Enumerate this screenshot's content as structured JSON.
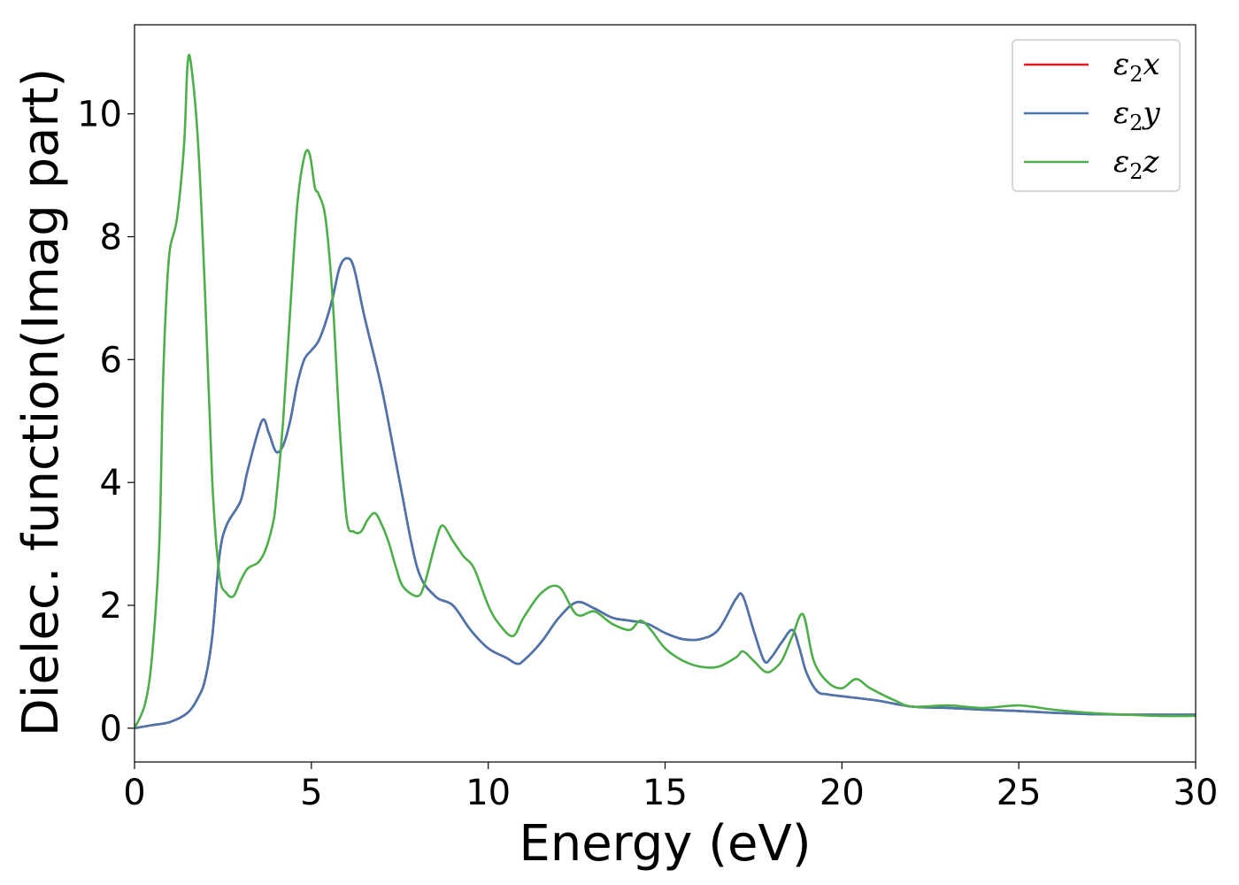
{
  "chart_data": {
    "type": "line",
    "title": "",
    "xlabel": "Energy (eV)",
    "ylabel": "Dielec. function(Imag part)",
    "xlim": [
      0,
      30
    ],
    "ylim": [
      -0.55,
      11.45
    ],
    "xticks": [
      0,
      5,
      10,
      15,
      20,
      25,
      30
    ],
    "yticks": [
      0,
      2,
      4,
      6,
      8,
      10
    ],
    "grid": false,
    "legend_position": "top-right",
    "series": [
      {
        "name": "ε₂x",
        "legend_base": "ε",
        "legend_sub": "2",
        "legend_tail": "x",
        "color": "#e41a1c",
        "x": [
          0,
          0.5,
          1,
          1.5,
          1.8,
          2,
          2.2,
          2.4,
          2.6,
          3,
          3.2,
          3.6,
          3.8,
          4,
          4.2,
          4.4,
          4.6,
          4.8,
          5,
          5.2,
          5.4,
          5.6,
          5.8,
          6,
          6.2,
          6.5,
          7,
          7.5,
          8,
          8.5,
          9,
          9.5,
          10,
          10.5,
          10.8,
          11,
          11.5,
          12,
          12.5,
          13,
          13.5,
          14,
          14.5,
          15,
          15.5,
          16,
          16.5,
          17,
          17.2,
          17.5,
          17.8,
          18,
          18.3,
          18.6,
          18.8,
          19,
          19.3,
          19.6,
          20,
          21,
          22,
          23,
          24,
          25,
          26,
          27,
          28,
          29,
          30
        ],
        "values": [
          0,
          0.05,
          0.1,
          0.25,
          0.5,
          0.8,
          1.5,
          2.8,
          3.3,
          3.7,
          4.2,
          5.0,
          4.8,
          4.5,
          4.6,
          5.0,
          5.6,
          6.0,
          6.15,
          6.3,
          6.6,
          7.0,
          7.5,
          7.65,
          7.5,
          6.7,
          5.5,
          4.0,
          2.6,
          2.15,
          2.0,
          1.6,
          1.3,
          1.15,
          1.05,
          1.1,
          1.4,
          1.8,
          2.05,
          1.95,
          1.8,
          1.75,
          1.7,
          1.55,
          1.45,
          1.45,
          1.6,
          2.1,
          2.15,
          1.6,
          1.1,
          1.15,
          1.4,
          1.6,
          1.3,
          0.9,
          0.6,
          0.55,
          0.52,
          0.45,
          0.35,
          0.33,
          0.3,
          0.28,
          0.25,
          0.23,
          0.22,
          0.22,
          0.22
        ]
      },
      {
        "name": "ε₂y",
        "legend_base": "ε",
        "legend_sub": "2",
        "legend_tail": "y",
        "color": "#4a76b0",
        "x": [
          0,
          0.5,
          1,
          1.5,
          1.8,
          2,
          2.2,
          2.4,
          2.6,
          3,
          3.2,
          3.6,
          3.8,
          4,
          4.2,
          4.4,
          4.6,
          4.8,
          5,
          5.2,
          5.4,
          5.6,
          5.8,
          6,
          6.2,
          6.5,
          7,
          7.5,
          8,
          8.5,
          9,
          9.5,
          10,
          10.5,
          10.8,
          11,
          11.5,
          12,
          12.5,
          13,
          13.5,
          14,
          14.5,
          15,
          15.5,
          16,
          16.5,
          17,
          17.2,
          17.5,
          17.8,
          18,
          18.3,
          18.6,
          18.8,
          19,
          19.3,
          19.6,
          20,
          21,
          22,
          23,
          24,
          25,
          26,
          27,
          28,
          29,
          30
        ],
        "values": [
          0,
          0.05,
          0.1,
          0.25,
          0.5,
          0.8,
          1.5,
          2.8,
          3.3,
          3.7,
          4.2,
          5.0,
          4.8,
          4.5,
          4.6,
          5.0,
          5.6,
          6.0,
          6.15,
          6.3,
          6.6,
          7.0,
          7.5,
          7.65,
          7.5,
          6.7,
          5.5,
          4.0,
          2.6,
          2.15,
          2.0,
          1.6,
          1.3,
          1.15,
          1.05,
          1.1,
          1.4,
          1.8,
          2.05,
          1.95,
          1.8,
          1.75,
          1.7,
          1.55,
          1.45,
          1.45,
          1.6,
          2.1,
          2.15,
          1.6,
          1.1,
          1.15,
          1.4,
          1.6,
          1.3,
          0.9,
          0.6,
          0.55,
          0.52,
          0.45,
          0.35,
          0.33,
          0.3,
          0.28,
          0.25,
          0.23,
          0.22,
          0.22,
          0.22
        ]
      },
      {
        "name": "ε₂z",
        "legend_base": "ε",
        "legend_sub": "2",
        "legend_tail": "z",
        "color": "#4daf4a",
        "x": [
          0,
          0.3,
          0.5,
          0.7,
          0.8,
          0.9,
          1,
          1.2,
          1.4,
          1.5,
          1.6,
          1.8,
          2,
          2.2,
          2.4,
          2.6,
          2.8,
          3,
          3.2,
          3.5,
          3.7,
          3.9,
          4,
          4.2,
          4.4,
          4.6,
          4.8,
          4.95,
          5.1,
          5.2,
          5.4,
          5.6,
          5.8,
          6,
          6.2,
          6.4,
          6.6,
          6.8,
          7,
          7.2,
          7.4,
          7.6,
          8,
          8.2,
          8.5,
          8.7,
          9,
          9.3,
          9.6,
          10,
          10.3,
          10.7,
          11,
          11.5,
          12,
          12.5,
          13,
          13.5,
          14,
          14.3,
          14.6,
          15,
          15.5,
          16,
          16.5,
          17,
          17.2,
          17.5,
          17.8,
          18,
          18.3,
          18.6,
          18.9,
          19.2,
          19.6,
          20,
          20.4,
          20.8,
          21.5,
          22,
          23,
          24,
          25,
          26,
          27,
          28,
          29,
          30
        ],
        "values": [
          0,
          0.4,
          1.2,
          3.0,
          5.5,
          7.0,
          7.8,
          8.3,
          9.5,
          10.8,
          10.8,
          9.5,
          7.0,
          4.0,
          2.5,
          2.2,
          2.15,
          2.4,
          2.6,
          2.7,
          2.9,
          3.3,
          3.7,
          5.0,
          6.8,
          8.5,
          9.3,
          9.35,
          8.8,
          8.7,
          8.3,
          7.0,
          4.9,
          3.4,
          3.2,
          3.2,
          3.4,
          3.5,
          3.3,
          3.0,
          2.6,
          2.3,
          2.15,
          2.35,
          3.0,
          3.3,
          3.05,
          2.8,
          2.6,
          2.0,
          1.7,
          1.5,
          1.8,
          2.2,
          2.3,
          1.85,
          1.9,
          1.7,
          1.6,
          1.75,
          1.6,
          1.3,
          1.1,
          1.0,
          1.0,
          1.15,
          1.25,
          1.1,
          0.93,
          0.93,
          1.1,
          1.5,
          1.85,
          1.1,
          0.75,
          0.65,
          0.8,
          0.65,
          0.45,
          0.35,
          0.37,
          0.33,
          0.37,
          0.3,
          0.25,
          0.22,
          0.2,
          0.2
        ]
      }
    ]
  }
}
